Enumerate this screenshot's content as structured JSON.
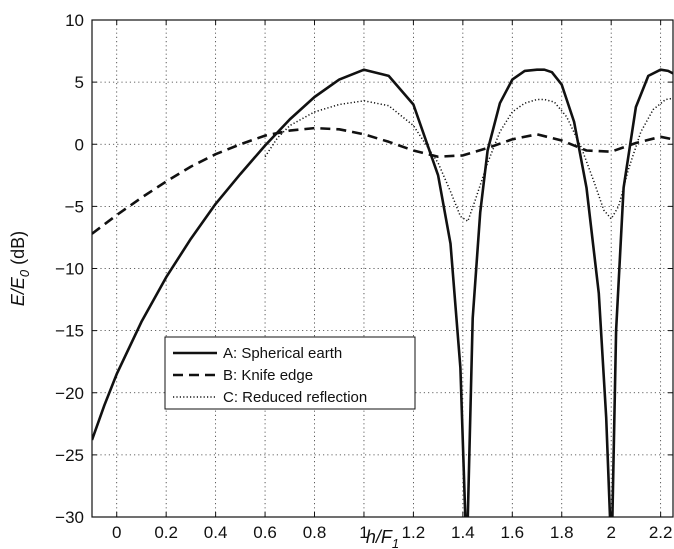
{
  "chart_data": {
    "type": "line",
    "title": "",
    "xlabel": {
      "main": "h/F",
      "sub": "1"
    },
    "ylabel": {
      "main": "E/E",
      "sub": "0",
      "suffix": " (dB)"
    },
    "xlim": [
      -0.1,
      2.25
    ],
    "ylim": [
      -30,
      10
    ],
    "xticks": [
      0,
      0.2,
      0.4,
      0.6,
      0.8,
      1,
      1.2,
      1.4,
      1.6,
      1.8,
      2,
      2.2
    ],
    "xtick_labels": [
      "0",
      "0.2",
      "0.4",
      "0.6",
      "0.8",
      "1",
      "1.2",
      "1.4",
      "1.6",
      "1.8",
      "2",
      "2.2"
    ],
    "yticks": [
      10,
      5,
      0,
      -5,
      -10,
      -15,
      -20,
      -25,
      -30
    ],
    "ytick_labels": [
      "10",
      "5",
      "0",
      "−5",
      "−10",
      "−15",
      "−20",
      "−25",
      "−30"
    ],
    "grid": true,
    "legend_position": "lower-left",
    "series": [
      {
        "name": "A: Spherical earth",
        "style": "solid",
        "color": "#111111",
        "x": [
          -0.1,
          -0.05,
          0.0,
          0.1,
          0.2,
          0.3,
          0.4,
          0.5,
          0.6,
          0.7,
          0.8,
          0.9,
          1.0,
          1.1,
          1.2,
          1.3,
          1.35,
          1.39,
          1.41,
          1.42,
          1.44,
          1.47,
          1.5,
          1.55,
          1.6,
          1.65,
          1.7,
          1.73,
          1.76,
          1.8,
          1.85,
          1.9,
          1.95,
          1.98,
          1.995,
          2.0,
          2.005,
          2.02,
          2.05,
          2.1,
          2.15,
          2.2,
          2.23,
          2.25
        ],
        "y": [
          -23.8,
          -21.0,
          -18.5,
          -14.3,
          -10.7,
          -7.6,
          -4.8,
          -2.4,
          -0.1,
          2.0,
          3.8,
          5.2,
          6.0,
          5.5,
          3.2,
          -2.5,
          -8.0,
          -18.0,
          -30,
          -30,
          -14.0,
          -5.5,
          -0.5,
          3.3,
          5.2,
          5.9,
          6.0,
          6.0,
          5.8,
          4.8,
          1.8,
          -3.5,
          -12.0,
          -22.0,
          -30,
          -30,
          -30,
          -15.0,
          -3.5,
          3.0,
          5.5,
          6.0,
          5.9,
          5.7
        ]
      },
      {
        "name": "B: Knife edge",
        "style": "dashed",
        "color": "#111111",
        "x": [
          -0.1,
          0.0,
          0.1,
          0.2,
          0.3,
          0.4,
          0.5,
          0.6,
          0.7,
          0.8,
          0.9,
          1.0,
          1.1,
          1.2,
          1.3,
          1.4,
          1.5,
          1.6,
          1.7,
          1.8,
          1.9,
          2.0,
          2.1,
          2.2,
          2.25
        ],
        "y": [
          -7.2,
          -5.7,
          -4.3,
          -3.0,
          -1.8,
          -0.8,
          0.0,
          0.7,
          1.1,
          1.3,
          1.2,
          0.8,
          0.2,
          -0.5,
          -1.0,
          -0.9,
          -0.3,
          0.4,
          0.8,
          0.3,
          -0.5,
          -0.6,
          0.1,
          0.6,
          0.4
        ]
      },
      {
        "name": "C: Reduced reflection",
        "style": "dotted",
        "color": "#111111",
        "x": [
          0.6,
          0.65,
          0.7,
          0.8,
          0.9,
          1.0,
          1.1,
          1.2,
          1.3,
          1.35,
          1.39,
          1.42,
          1.45,
          1.5,
          1.55,
          1.6,
          1.65,
          1.7,
          1.73,
          1.77,
          1.82,
          1.88,
          1.93,
          1.97,
          2.0,
          2.03,
          2.07,
          2.12,
          2.17,
          2.22,
          2.25
        ],
        "y": [
          -1.0,
          0.5,
          1.5,
          2.6,
          3.2,
          3.5,
          3.1,
          1.5,
          -1.5,
          -3.8,
          -5.8,
          -6.2,
          -4.5,
          -1.5,
          1.0,
          2.6,
          3.3,
          3.6,
          3.6,
          3.4,
          2.2,
          -0.3,
          -3.0,
          -5.3,
          -6.0,
          -5.0,
          -2.0,
          1.0,
          2.8,
          3.6,
          3.7
        ]
      }
    ]
  }
}
